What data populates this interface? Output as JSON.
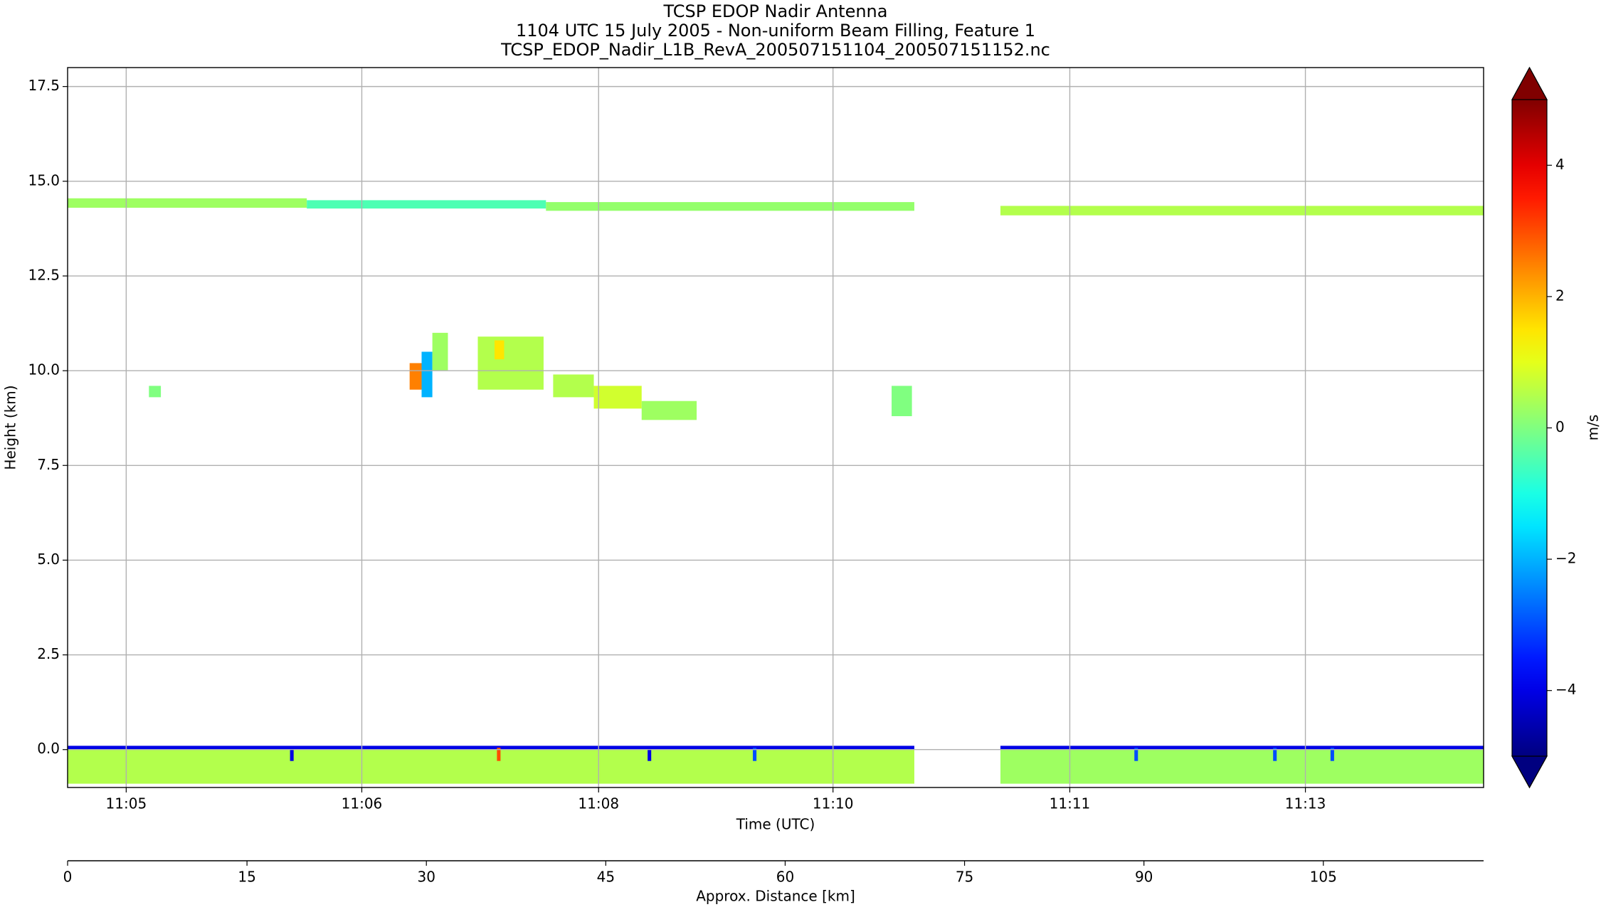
{
  "chart_data": {
    "type": "heatmap",
    "title": [
      "TCSP EDOP Nadir Antenna",
      "1104 UTC 15 July 2005 - Non-uniform Beam Filling, Feature 1",
      "TCSP_EDOP_Nadir_L1B_RevA_200507151104_200507151152.nc"
    ],
    "xlabel": "Time (UTC)",
    "x2label": "Approx. Distance [km]",
    "ylabel": "Height (km)",
    "colorbar_label": "m/s",
    "xlim": [
      0,
      118.4
    ],
    "xticks": [
      {
        "value": 4.9,
        "label": "11:05"
      },
      {
        "value": 24.6,
        "label": "11:06"
      },
      {
        "value": 44.4,
        "label": "11:08"
      },
      {
        "value": 64.0,
        "label": "11:10"
      },
      {
        "value": 83.8,
        "label": "11:11"
      },
      {
        "value": 103.5,
        "label": "11:13"
      }
    ],
    "x2ticks": [
      0,
      15,
      30,
      45,
      60,
      75,
      90,
      105
    ],
    "ylim": [
      -1,
      18
    ],
    "yticks": [
      {
        "value": 0,
        "label": "0.0"
      },
      2.5,
      {
        "value": 5,
        "label": "5.0"
      },
      7.5,
      {
        "value": 10,
        "label": "10.0"
      },
      12.5,
      {
        "value": 15,
        "label": "15.0"
      },
      17.5
    ],
    "clim": [
      -5,
      5
    ],
    "cticks": [
      {
        "value": -4,
        "label": "−4"
      },
      {
        "value": -2,
        "label": "−2"
      },
      0,
      2,
      4
    ],
    "grid": true,
    "colormap": "jet",
    "cells": {
      "x0": [
        0,
        20,
        40,
        78,
        0,
        78,
        0,
        78,
        18.6,
        35.9,
        48.5,
        57.3,
        89.2,
        100.8,
        105.6,
        28.6,
        29.6,
        30.5,
        34.3,
        35.7,
        40.6,
        44,
        48,
        68.9,
        6.8
      ],
      "x1": [
        20,
        40,
        70.8,
        118.4,
        70.8,
        118.4,
        70.8,
        118.4,
        18.9,
        36.2,
        48.8,
        57.6,
        89.5,
        101.1,
        105.9,
        29.6,
        30.5,
        31.8,
        39.8,
        36.5,
        44,
        48,
        52.6,
        70.6,
        7.8
      ],
      "y0": [
        14.3,
        14.28,
        14.22,
        14.1,
        -0.9,
        -0.9,
        0.0,
        0.0,
        -0.3,
        -0.3,
        -0.3,
        -0.3,
        -0.3,
        -0.3,
        -0.3,
        9.5,
        9.3,
        10.0,
        9.5,
        10.3,
        9.3,
        9.0,
        8.7,
        8.8,
        9.3
      ],
      "y1": [
        14.55,
        14.5,
        14.45,
        14.35,
        0.0,
        0.0,
        0.1,
        0.1,
        0.05,
        0.05,
        0.05,
        0.05,
        0.05,
        0.05,
        0.05,
        10.2,
        10.5,
        11.0,
        10.9,
        10.8,
        9.9,
        9.6,
        9.2,
        9.6,
        9.6
      ],
      "values": [
        0.3,
        -0.5,
        0.2,
        0.5,
        0.5,
        0.3,
        -4,
        -4,
        -4,
        3,
        -4,
        -3,
        -3,
        -3,
        -3,
        2.5,
        -2,
        0.3,
        0.5,
        1.5,
        0.5,
        0.8,
        0.3,
        0,
        0
      ]
    }
  }
}
